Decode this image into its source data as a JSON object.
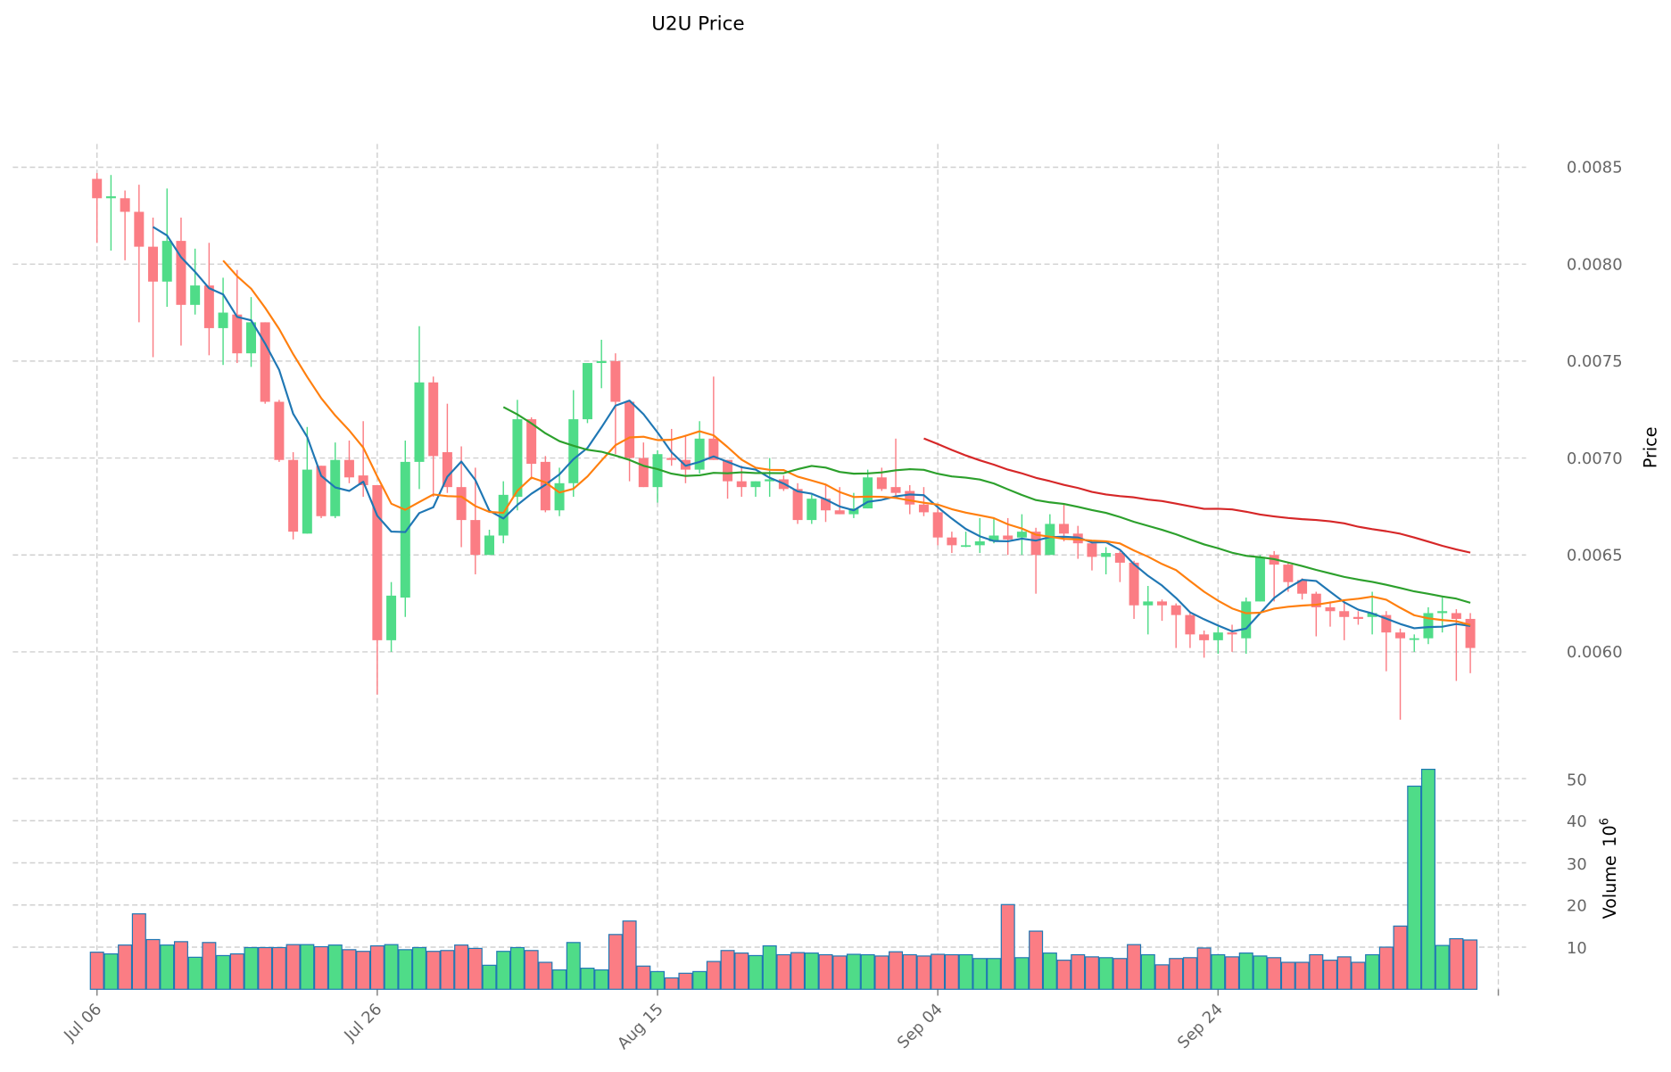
{
  "chart_data": {
    "type": "candlestick",
    "title": "U2U Price",
    "ylabel": "Price",
    "volume_label": "Volume",
    "volume_multiplier_base": "10",
    "volume_multiplier_exp": "6",
    "ylim": [
      0.00557,
      0.00862
    ],
    "volume_ylim": [
      0,
      57
    ],
    "price_ticks": [
      "0.0085",
      "0.0080",
      "0.0075",
      "0.0070",
      "0.0065",
      "0.0060"
    ],
    "volume_ticks": [
      "10",
      "20",
      "30",
      "40",
      "50"
    ],
    "x_ticks": [
      {
        "label": "Jul 06",
        "index": 0
      },
      {
        "label": "Jul 26",
        "index": 20
      },
      {
        "label": "Aug 15",
        "index": 40
      },
      {
        "label": "Sep 04",
        "index": 60
      },
      {
        "label": "Sep 24",
        "index": 80
      },
      {
        "label": "",
        "index": 100
      }
    ],
    "colors": {
      "up": "#4fdc88",
      "down": "#fb7d84",
      "volume_edge": "#1f77b4",
      "grid": "#d0d0d0"
    },
    "moving_averages": [
      {
        "window": 5,
        "color": "#1f77b4"
      },
      {
        "window": 10,
        "color": "#ff7f0e"
      },
      {
        "window": 30,
        "color": "#2ca02c"
      },
      {
        "window": 60,
        "color": "#d62728"
      }
    ],
    "ohlc": [
      [
        0.00844,
        0.00847,
        0.00811,
        0.00834
      ],
      [
        0.00834,
        0.00846,
        0.00807,
        0.00835
      ],
      [
        0.00834,
        0.00838,
        0.00802,
        0.00827
      ],
      [
        0.00827,
        0.00841,
        0.0077,
        0.00809
      ],
      [
        0.00809,
        0.00824,
        0.00752,
        0.00791
      ],
      [
        0.00791,
        0.00839,
        0.00778,
        0.00812
      ],
      [
        0.00812,
        0.00824,
        0.00758,
        0.00779
      ],
      [
        0.00779,
        0.00808,
        0.00774,
        0.00789
      ],
      [
        0.00789,
        0.00811,
        0.00753,
        0.00767
      ],
      [
        0.00767,
        0.00793,
        0.00748,
        0.00775
      ],
      [
        0.00774,
        0.00797,
        0.00749,
        0.00754
      ],
      [
        0.00754,
        0.00783,
        0.00747,
        0.0077
      ],
      [
        0.0077,
        0.0077,
        0.00728,
        0.00729
      ],
      [
        0.00729,
        0.0073,
        0.00698,
        0.00699
      ],
      [
        0.00699,
        0.00703,
        0.00658,
        0.00662
      ],
      [
        0.00661,
        0.00716,
        0.00661,
        0.00694
      ],
      [
        0.00696,
        0.00696,
        0.00669,
        0.0067
      ],
      [
        0.0067,
        0.00708,
        0.00669,
        0.00699
      ],
      [
        0.00699,
        0.00709,
        0.00687,
        0.0069
      ],
      [
        0.00691,
        0.00719,
        0.0068,
        0.00686
      ],
      [
        0.00686,
        0.00686,
        0.00578,
        0.00606
      ],
      [
        0.00606,
        0.00636,
        0.006,
        0.00629
      ],
      [
        0.00628,
        0.00709,
        0.00618,
        0.00698
      ],
      [
        0.00698,
        0.00768,
        0.00684,
        0.00739
      ],
      [
        0.00739,
        0.00742,
        0.0068,
        0.00701
      ],
      [
        0.00703,
        0.00728,
        0.00682,
        0.00685
      ],
      [
        0.00685,
        0.00706,
        0.00654,
        0.00668
      ],
      [
        0.00668,
        0.00695,
        0.0064,
        0.0065
      ],
      [
        0.0065,
        0.00663,
        0.0065,
        0.0066
      ],
      [
        0.0066,
        0.00688,
        0.00656,
        0.00681
      ],
      [
        0.0068,
        0.0073,
        0.00673,
        0.0072
      ],
      [
        0.0072,
        0.00721,
        0.00689,
        0.00697
      ],
      [
        0.00698,
        0.00701,
        0.00672,
        0.00673
      ],
      [
        0.00673,
        0.00695,
        0.0067,
        0.00687
      ],
      [
        0.00687,
        0.00735,
        0.0068,
        0.0072
      ],
      [
        0.0072,
        0.00749,
        0.00718,
        0.00749
      ],
      [
        0.00749,
        0.00761,
        0.00736,
        0.0075
      ],
      [
        0.0075,
        0.00754,
        0.00702,
        0.00729
      ],
      [
        0.00729,
        0.00729,
        0.00688,
        0.007
      ],
      [
        0.007,
        0.00708,
        0.00685,
        0.00685
      ],
      [
        0.00685,
        0.00704,
        0.00677,
        0.00702
      ],
      [
        0.007,
        0.00715,
        0.00696,
        0.00699
      ],
      [
        0.00699,
        0.00712,
        0.00687,
        0.00694
      ],
      [
        0.00694,
        0.00719,
        0.00692,
        0.0071
      ],
      [
        0.0071,
        0.00742,
        0.00699,
        0.00699
      ],
      [
        0.00699,
        0.00699,
        0.00679,
        0.00688
      ],
      [
        0.00688,
        0.00696,
        0.0068,
        0.00685
      ],
      [
        0.00685,
        0.00688,
        0.0068,
        0.00688
      ],
      [
        0.00688,
        0.007,
        0.0068,
        0.00689
      ],
      [
        0.00689,
        0.00691,
        0.00683,
        0.00684
      ],
      [
        0.00684,
        0.00687,
        0.00666,
        0.00668
      ],
      [
        0.00668,
        0.00681,
        0.00666,
        0.00679
      ],
      [
        0.00679,
        0.00686,
        0.00667,
        0.00673
      ],
      [
        0.00673,
        0.00685,
        0.00671,
        0.00671
      ],
      [
        0.00671,
        0.00682,
        0.00669,
        0.00674
      ],
      [
        0.00674,
        0.00694,
        0.00674,
        0.0069
      ],
      [
        0.0069,
        0.00695,
        0.00683,
        0.00684
      ],
      [
        0.00685,
        0.0071,
        0.00679,
        0.00682
      ],
      [
        0.00683,
        0.00686,
        0.00671,
        0.00676
      ],
      [
        0.00676,
        0.00685,
        0.0067,
        0.00672
      ],
      [
        0.00672,
        0.00675,
        0.00655,
        0.00659
      ],
      [
        0.00659,
        0.00662,
        0.00651,
        0.00655
      ],
      [
        0.00655,
        0.00662,
        0.00654,
        0.00655
      ],
      [
        0.00655,
        0.00669,
        0.00651,
        0.00657
      ],
      [
        0.00657,
        0.00669,
        0.00656,
        0.0066
      ],
      [
        0.0066,
        0.00669,
        0.0065,
        0.00658
      ],
      [
        0.00659,
        0.00671,
        0.0065,
        0.00662
      ],
      [
        0.00662,
        0.00664,
        0.0063,
        0.0065
      ],
      [
        0.0065,
        0.00671,
        0.0065,
        0.00666
      ],
      [
        0.00666,
        0.00676,
        0.00657,
        0.00661
      ],
      [
        0.00661,
        0.00665,
        0.00648,
        0.00656
      ],
      [
        0.00656,
        0.00657,
        0.00642,
        0.00649
      ],
      [
        0.00649,
        0.00654,
        0.0064,
        0.00651
      ],
      [
        0.00651,
        0.00652,
        0.00636,
        0.00646
      ],
      [
        0.00646,
        0.00647,
        0.00617,
        0.00624
      ],
      [
        0.00624,
        0.00634,
        0.00609,
        0.00626
      ],
      [
        0.00626,
        0.00627,
        0.00616,
        0.00624
      ],
      [
        0.00624,
        0.00625,
        0.00602,
        0.00619
      ],
      [
        0.00619,
        0.0062,
        0.00602,
        0.00609
      ],
      [
        0.00609,
        0.00611,
        0.00597,
        0.00606
      ],
      [
        0.00606,
        0.00613,
        0.00599,
        0.0061
      ],
      [
        0.0061,
        0.00614,
        0.006,
        0.00609
      ],
      [
        0.00607,
        0.00628,
        0.00599,
        0.00626
      ],
      [
        0.00626,
        0.0065,
        0.00626,
        0.00649
      ],
      [
        0.0065,
        0.00652,
        0.00626,
        0.00645
      ],
      [
        0.00645,
        0.00646,
        0.00631,
        0.00636
      ],
      [
        0.00637,
        0.00638,
        0.00627,
        0.0063
      ],
      [
        0.0063,
        0.00631,
        0.00608,
        0.00623
      ],
      [
        0.00623,
        0.00626,
        0.00613,
        0.00621
      ],
      [
        0.00621,
        0.00626,
        0.00606,
        0.00618
      ],
      [
        0.00618,
        0.00621,
        0.00614,
        0.00617
      ],
      [
        0.00618,
        0.00631,
        0.00609,
        0.0062
      ],
      [
        0.00619,
        0.00621,
        0.0059,
        0.0061
      ],
      [
        0.0061,
        0.00612,
        0.00565,
        0.00607
      ],
      [
        0.00607,
        0.00609,
        0.006,
        0.00607
      ],
      [
        0.00607,
        0.00623,
        0.00604,
        0.0062
      ],
      [
        0.0062,
        0.00628,
        0.0061,
        0.00621
      ],
      [
        0.0062,
        0.00622,
        0.00585,
        0.00617
      ],
      [
        0.00617,
        0.0062,
        0.00589,
        0.00602
      ]
    ],
    "volume": [
      8.8,
      8.4,
      10.5,
      17.9,
      11.8,
      10.5,
      11.3,
      7.6,
      11.1,
      8.0,
      8.4,
      9.9,
      9.9,
      9.9,
      10.6,
      10.6,
      10.1,
      10.5,
      9.4,
      9.0,
      10.3,
      10.6,
      9.4,
      9.9,
      9.0,
      9.2,
      10.5,
      9.7,
      5.7,
      9.0,
      9.9,
      9.2,
      6.4,
      4.6,
      11.1,
      5.0,
      4.6,
      13.0,
      16.2,
      5.5,
      4.2,
      2.7,
      3.8,
      4.2,
      6.6,
      9.2,
      8.6,
      8.0,
      10.3,
      8.2,
      8.7,
      8.6,
      8.2,
      7.9,
      8.3,
      8.2,
      7.9,
      8.9,
      8.2,
      7.9,
      8.3,
      8.2,
      8.2,
      7.3,
      7.3,
      20.1,
      7.5,
      13.8,
      8.6,
      6.9,
      8.2,
      7.7,
      7.5,
      7.3,
      10.6,
      8.2,
      5.8,
      7.3,
      7.5,
      9.8,
      8.2,
      7.7,
      8.6,
      7.9,
      7.5,
      6.4,
      6.4,
      8.2,
      6.9,
      7.7,
      6.4,
      8.2,
      10.0,
      15.0,
      48.2,
      52.2,
      10.4,
      12.0,
      11.7
    ]
  }
}
